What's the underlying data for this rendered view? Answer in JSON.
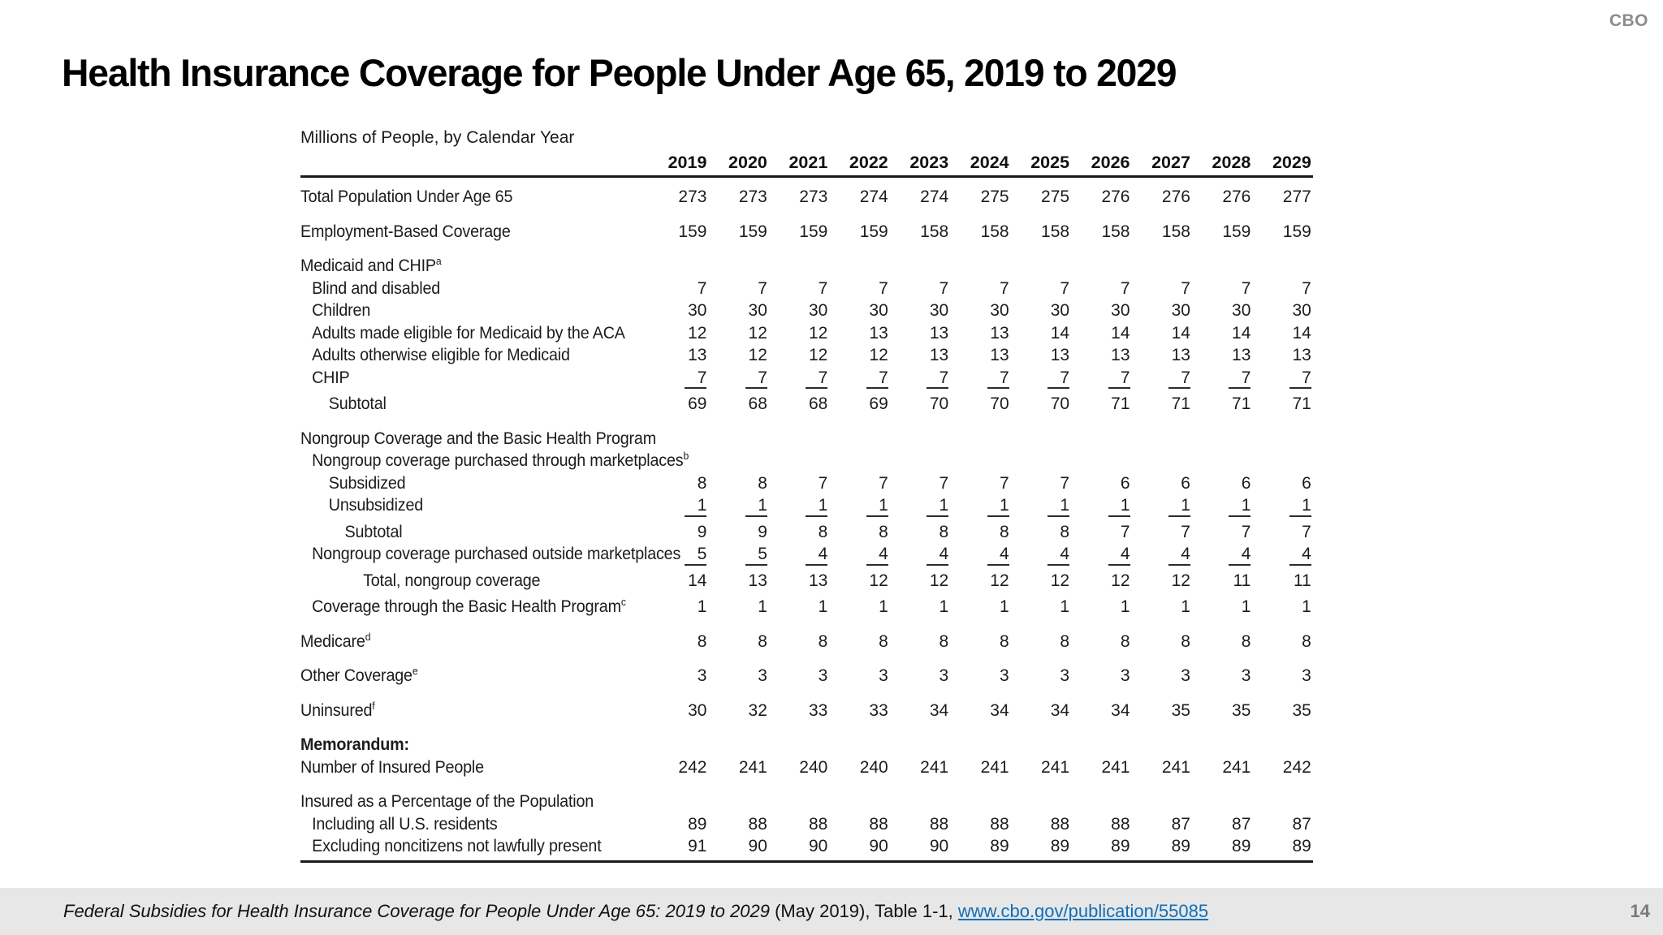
{
  "brand": "CBO",
  "title": "Health Insurance Coverage for People Under Age 65, 2019 to 2029",
  "table": {
    "caption": "Millions of People, by Calendar Year",
    "years": [
      "2019",
      "2020",
      "2021",
      "2022",
      "2023",
      "2024",
      "2025",
      "2026",
      "2027",
      "2028",
      "2029"
    ],
    "rows": [
      {
        "label": "Total Population Under Age 65",
        "indent": 0,
        "gap": "",
        "values": [
          "273",
          "273",
          "273",
          "274",
          "274",
          "275",
          "275",
          "276",
          "276",
          "276",
          "277"
        ]
      },
      {
        "label": "Employment-Based Coverage",
        "indent": 0,
        "gap": "lg",
        "values": [
          "159",
          "159",
          "159",
          "159",
          "158",
          "158",
          "158",
          "158",
          "158",
          "159",
          "159"
        ]
      },
      {
        "label": "Medicaid and CHIP",
        "sup": "a",
        "indent": 0,
        "gap": "lg",
        "values": []
      },
      {
        "label": "Blind and disabled",
        "indent": 1,
        "gap": "",
        "values": [
          "7",
          "7",
          "7",
          "7",
          "7",
          "7",
          "7",
          "7",
          "7",
          "7",
          "7"
        ]
      },
      {
        "label": "Children",
        "indent": 1,
        "gap": "",
        "values": [
          "30",
          "30",
          "30",
          "30",
          "30",
          "30",
          "30",
          "30",
          "30",
          "30",
          "30"
        ]
      },
      {
        "label": "Adults made eligible for Medicaid by the ACA",
        "indent": 1,
        "gap": "",
        "values": [
          "12",
          "12",
          "12",
          "13",
          "13",
          "13",
          "14",
          "14",
          "14",
          "14",
          "14"
        ]
      },
      {
        "label": "Adults otherwise eligible for Medicaid",
        "indent": 1,
        "gap": "",
        "values": [
          "13",
          "12",
          "12",
          "12",
          "13",
          "13",
          "13",
          "13",
          "13",
          "13",
          "13"
        ]
      },
      {
        "label": "CHIP",
        "indent": 1,
        "gap": "",
        "rule_below": true,
        "values": [
          "7",
          "7",
          "7",
          "7",
          "7",
          "7",
          "7",
          "7",
          "7",
          "7",
          "7"
        ]
      },
      {
        "label": "Subtotal",
        "indent": 2,
        "gap": "sm",
        "values": [
          "69",
          "68",
          "68",
          "69",
          "70",
          "70",
          "70",
          "71",
          "71",
          "71",
          "71"
        ]
      },
      {
        "label": "Nongroup Coverage and the Basic Health Program",
        "indent": 0,
        "gap": "lg",
        "values": []
      },
      {
        "label": "Nongroup coverage purchased through marketplaces",
        "sup": "b",
        "indent": 1,
        "gap": "",
        "values": []
      },
      {
        "label": "Subsidized",
        "indent": 2,
        "gap": "",
        "values": [
          "8",
          "8",
          "7",
          "7",
          "7",
          "7",
          "7",
          "6",
          "6",
          "6",
          "6"
        ]
      },
      {
        "label": "Unsubsidized",
        "indent": 2,
        "gap": "",
        "rule_below": true,
        "values": [
          "1",
          "1",
          "1",
          "1",
          "1",
          "1",
          "1",
          "1",
          "1",
          "1",
          "1"
        ]
      },
      {
        "label": "Subtotal",
        "indent": 3,
        "gap": "sm",
        "values": [
          "9",
          "9",
          "8",
          "8",
          "8",
          "8",
          "8",
          "7",
          "7",
          "7",
          "7"
        ]
      },
      {
        "label": "Nongroup coverage purchased outside marketplaces",
        "indent": 1,
        "gap": "",
        "rule_below": true,
        "values": [
          "5",
          "5",
          "4",
          "4",
          "4",
          "4",
          "4",
          "4",
          "4",
          "4",
          "4"
        ]
      },
      {
        "label": "Total, nongroup coverage",
        "indent": 4,
        "gap": "sm",
        "values": [
          "14",
          "13",
          "13",
          "12",
          "12",
          "12",
          "12",
          "12",
          "12",
          "11",
          "11"
        ]
      },
      {
        "label": "Coverage through the Basic Health Program",
        "sup": "c",
        "indent": 1,
        "gap": "sm",
        "values": [
          "1",
          "1",
          "1",
          "1",
          "1",
          "1",
          "1",
          "1",
          "1",
          "1",
          "1"
        ]
      },
      {
        "label": "Medicare",
        "sup": "d",
        "indent": 0,
        "gap": "lg",
        "values": [
          "8",
          "8",
          "8",
          "8",
          "8",
          "8",
          "8",
          "8",
          "8",
          "8",
          "8"
        ]
      },
      {
        "label": "Other Coverage",
        "sup": "e",
        "indent": 0,
        "gap": "lg",
        "values": [
          "3",
          "3",
          "3",
          "3",
          "3",
          "3",
          "3",
          "3",
          "3",
          "3",
          "3"
        ]
      },
      {
        "label": "Uninsured",
        "sup": "f",
        "indent": 0,
        "gap": "lg",
        "values": [
          "30",
          "32",
          "33",
          "33",
          "34",
          "34",
          "34",
          "34",
          "35",
          "35",
          "35"
        ]
      },
      {
        "label": "Memorandum:",
        "indent": 0,
        "gap": "lg",
        "bold": true,
        "values": []
      },
      {
        "label": "Number of Insured People",
        "indent": 0,
        "gap": "",
        "values": [
          "242",
          "241",
          "240",
          "240",
          "241",
          "241",
          "241",
          "241",
          "241",
          "241",
          "242"
        ]
      },
      {
        "label": "Insured as a Percentage of the Population",
        "indent": 0,
        "gap": "lg",
        "values": []
      },
      {
        "label": "Including all U.S. residents",
        "indent": 1,
        "gap": "",
        "values": [
          "89",
          "88",
          "88",
          "88",
          "88",
          "88",
          "88",
          "88",
          "87",
          "87",
          "87"
        ]
      },
      {
        "label": "Excluding noncitizens not lawfully present",
        "indent": 1,
        "gap": "",
        "values": [
          "91",
          "90",
          "90",
          "90",
          "90",
          "89",
          "89",
          "89",
          "89",
          "89",
          "89"
        ]
      }
    ]
  },
  "footer": {
    "source_italic": "Federal Subsidies for Health Insurance Coverage for People Under Age 65: 2019 to 2029",
    "source_regular": " (May 2019), Table 1-1, ",
    "link": "www.cbo.gov/publication/55085",
    "page": "14"
  },
  "colors": {
    "link_blue": "#0e6fb8",
    "footer_band": "#e7e7e7",
    "brand_gray": "#8c8c8c",
    "page_number_gray": "#7a7a7a",
    "rule_black": "#1a1a1a"
  }
}
